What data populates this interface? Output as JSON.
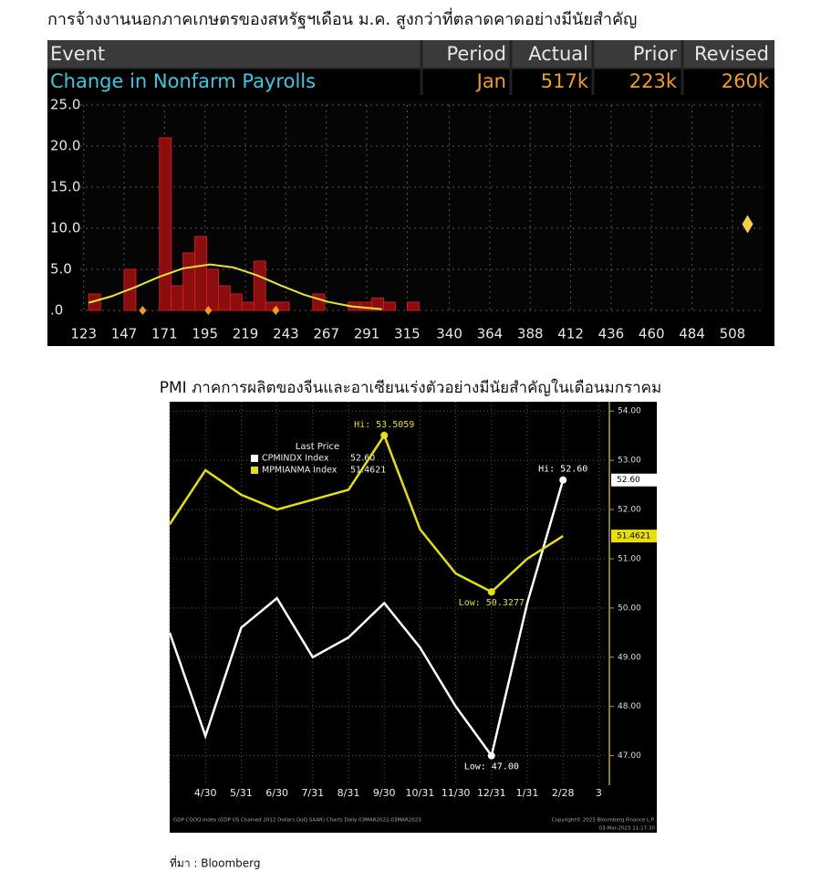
{
  "chart_data": [
    {
      "type": "histogram",
      "title": "การจ้างงานนอกภาคเกษตรของสหรัฐฯเดือน ม.ค. สูงกว่าที่ตลาดคาดอย่างมีนัยสำคัญ",
      "table": {
        "header": [
          "Event",
          "Period",
          "Actual",
          "Prior",
          "Revised"
        ],
        "row": [
          "Change in Nonfarm Payrolls",
          "Jan",
          "517k",
          "223k",
          "260k"
        ]
      },
      "bins": [
        126,
        133,
        140,
        147,
        154,
        161,
        168,
        175,
        182,
        189,
        196,
        203,
        210,
        217,
        224,
        231,
        238,
        245,
        252,
        259,
        266,
        273,
        280,
        287,
        294,
        301,
        308,
        315,
        322
      ],
      "values": [
        2,
        0,
        0,
        5,
        0,
        0,
        21,
        3,
        7,
        9,
        5,
        3,
        2,
        1,
        6,
        1,
        1,
        0,
        0,
        2,
        0,
        0,
        1,
        1,
        1.5,
        1,
        0,
        1
      ],
      "color": "#8b0d0d",
      "curve": {
        "x": [
          126,
          140,
          154,
          168,
          182,
          198,
          212,
          226,
          240,
          254,
          268,
          282,
          300
        ],
        "values": [
          0.93,
          1.75,
          2.87,
          4.1,
          5.12,
          5.6,
          5.23,
          4.27,
          3.04,
          1.89,
          1.05,
          0.49,
          0.15
        ],
        "color": "#e6e62e"
      },
      "markers": {
        "x": [
          158,
          197,
          237
        ],
        "values": [
          0,
          0,
          0
        ],
        "color": "#f39c1e"
      },
      "actual_marker": {
        "x": 517,
        "value": 10.5,
        "color": "#f5d142"
      },
      "xlim": [
        121,
        527
      ],
      "xticks": [
        123,
        147,
        171,
        195,
        219,
        243,
        267,
        291,
        315,
        340,
        364,
        388,
        412,
        436,
        460,
        484,
        508
      ],
      "ylim": [
        0,
        25
      ],
      "yticks": [
        {
          "value": 25,
          "label": "25.0"
        },
        {
          "value": 20,
          "label": "20.0"
        },
        {
          "value": 15,
          "label": "15.0"
        },
        {
          "value": 10,
          "label": "10.0"
        },
        {
          "value": 5,
          "label": "5.0"
        },
        {
          "value": 0,
          "label": ".0"
        }
      ],
      "grid": true
    },
    {
      "type": "line",
      "title": "PMI ภาคการผลิตของจีนและอาเซียนเร่งตัวอย่างมีนัยสำคัญในเดือนมกราคม",
      "categories": [
        null,
        "4/30",
        "5/31",
        "6/30",
        "7/31",
        "8/31",
        "9/30",
        "10/31",
        "11/30",
        "12/31",
        "1/31",
        "2/28",
        "3"
      ],
      "series": [
        {
          "name": "CPMINDX Index",
          "color": "#ffffff",
          "last_price": "52.60",
          "values": [
            49.5,
            47.4,
            49.6,
            50.2,
            49.0,
            49.4,
            50.1,
            49.2,
            48.0,
            47.0,
            50.1,
            52.6,
            null
          ]
        },
        {
          "name": "MPMIANMA Index",
          "color": "#e8e000",
          "last_price": "51.4621",
          "values": [
            51.7,
            52.8,
            52.3,
            52.0,
            52.2,
            52.4,
            53.5059,
            51.6,
            50.7,
            50.3277,
            51.0,
            51.4621,
            null
          ]
        }
      ],
      "legend_title": "Last Price",
      "annotations": [
        {
          "text": "Hi: 53.5059",
          "series": 1,
          "index": 6
        },
        {
          "text": "Low: 50.3277",
          "series": 1,
          "index": 9
        },
        {
          "text": "Hi: 52.60",
          "series": 0,
          "index": 11
        },
        {
          "text": "Low: 47.00",
          "series": 0,
          "index": 9
        }
      ],
      "ylim": [
        46.4,
        54.19
      ],
      "yticks": [
        {
          "value": 54,
          "label": "54.00"
        },
        {
          "value": 53,
          "label": "53.00"
        },
        {
          "value": 52,
          "label": "52.00"
        },
        {
          "value": 51,
          "label": "51.00"
        },
        {
          "value": 50,
          "label": "50.00"
        },
        {
          "value": 49,
          "label": "49.00"
        },
        {
          "value": 48,
          "label": "48.00"
        },
        {
          "value": 47,
          "label": "47.00"
        }
      ],
      "grid": true,
      "footnotes": [
        "GDP CQOQ Index (GDP US Chained 2012 Dollars QoQ SAAR) Charts  Daily 03MAR2022-03MAR2023",
        "Copyright© 2023 Bloomberg Finance L.P.",
        "03-Mar-2023 11:17:30"
      ]
    }
  ],
  "source": "ที่มา : Bloomberg"
}
